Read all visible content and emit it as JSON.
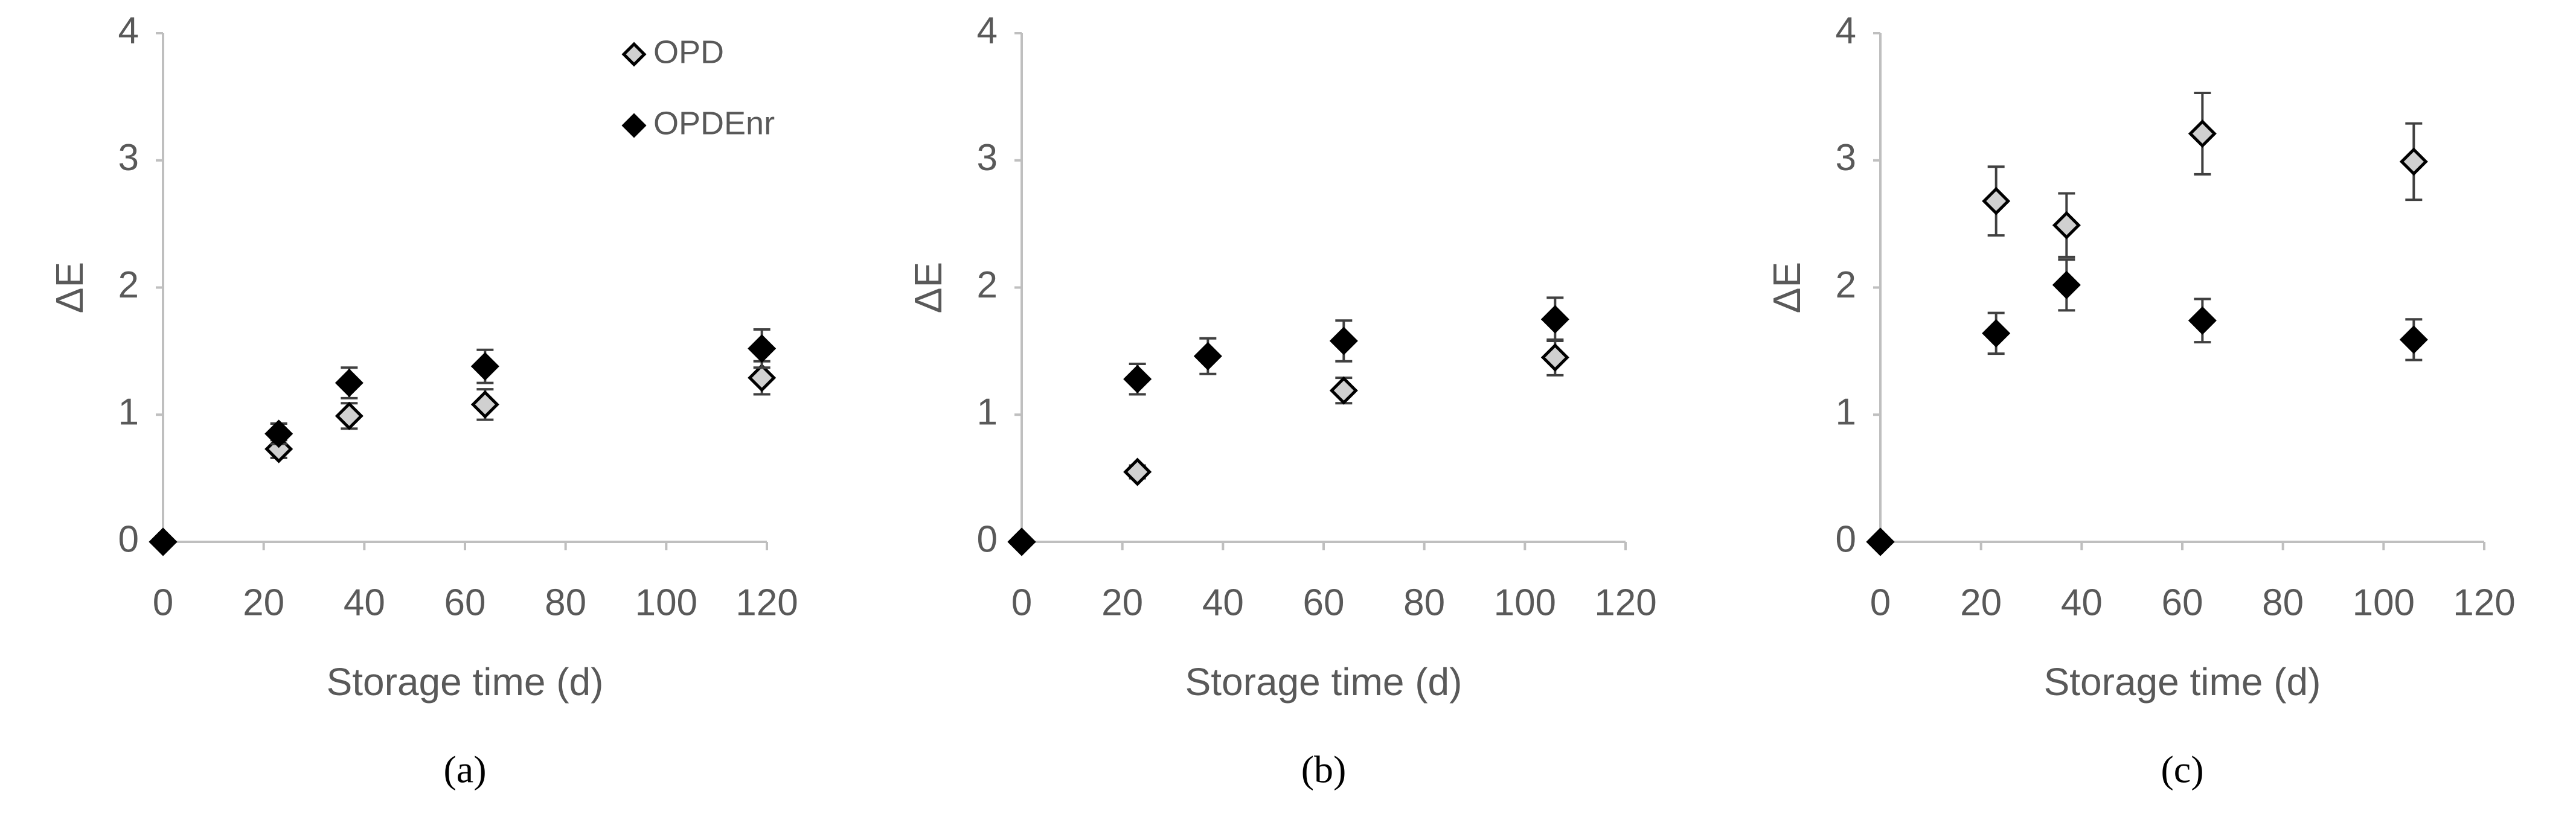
{
  "chart_data": [
    {
      "type": "scatter",
      "caption": "(a)",
      "x_label": "Storage time (d)",
      "y_label": "ΔE",
      "xlim": [
        0,
        120
      ],
      "ylim": [
        0,
        4
      ],
      "xticks": [
        0,
        20,
        40,
        60,
        80,
        100,
        120
      ],
      "yticks": [
        0,
        1,
        2,
        3,
        4
      ],
      "legend": "top-right",
      "series": [
        {
          "name": "OPD",
          "color": "#000000",
          "marker_fill": "#d0d0d0",
          "x": [
            0,
            23,
            37,
            64,
            119
          ],
          "values": [
            0,
            0.73,
            0.99,
            1.08,
            1.29
          ],
          "errors": [
            null,
            0.07,
            0.1,
            0.12,
            0.13
          ]
        },
        {
          "name": "OPDEnr",
          "color": "#000000",
          "marker_fill": "#000000",
          "x": [
            0,
            23,
            37,
            64,
            119
          ],
          "values": [
            0,
            0.85,
            1.25,
            1.38,
            1.52
          ],
          "errors": [
            null,
            0.08,
            0.12,
            0.13,
            0.15
          ]
        }
      ]
    },
    {
      "type": "scatter",
      "caption": "(b)",
      "x_label": "Storage time (d)",
      "y_label": "ΔE",
      "xlim": [
        0,
        120
      ],
      "ylim": [
        0,
        4
      ],
      "xticks": [
        0,
        20,
        40,
        60,
        80,
        100,
        120
      ],
      "yticks": [
        0,
        1,
        2,
        3,
        4
      ],
      "series": [
        {
          "color": "#000000",
          "marker_fill": "#d0d0d0",
          "x": [
            0,
            23,
            64,
            106
          ],
          "values": [
            0,
            0.55,
            1.19,
            1.45
          ],
          "errors": [
            null,
            0.05,
            0.1,
            0.14
          ]
        },
        {
          "color": "#000000",
          "marker_fill": "#000000",
          "x": [
            0,
            23,
            37,
            64,
            106
          ],
          "values": [
            0,
            1.28,
            1.46,
            1.58,
            1.75
          ],
          "errors": [
            null,
            0.12,
            0.14,
            0.16,
            0.17
          ]
        }
      ]
    },
    {
      "type": "scatter",
      "caption": "(c)",
      "x_label": "Storage time (d)",
      "y_label": "ΔE",
      "xlim": [
        0,
        120
      ],
      "ylim": [
        0,
        4
      ],
      "xticks": [
        0,
        20,
        40,
        60,
        80,
        100,
        120
      ],
      "yticks": [
        0,
        1,
        2,
        3,
        4
      ],
      "series": [
        {
          "color": "#000000",
          "marker_fill": "#d0d0d0",
          "x": [
            0,
            23,
            37,
            64,
            106
          ],
          "values": [
            0,
            2.68,
            2.49,
            3.21,
            2.99
          ],
          "errors": [
            null,
            0.27,
            0.25,
            0.32,
            0.3
          ]
        },
        {
          "color": "#000000",
          "marker_fill": "#000000",
          "x": [
            0,
            23,
            37,
            64,
            106
          ],
          "values": [
            0,
            1.64,
            2.02,
            1.74,
            1.59
          ],
          "errors": [
            null,
            0.16,
            0.2,
            0.17,
            0.16
          ]
        }
      ]
    }
  ]
}
